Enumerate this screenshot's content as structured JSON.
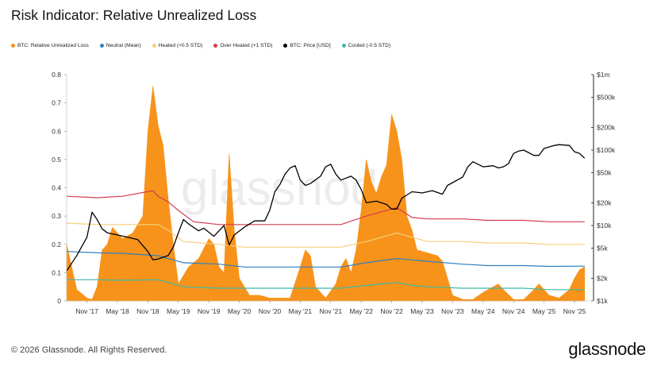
{
  "page": {
    "title": "Risk Indicator: Relative Unrealized Loss",
    "footer": "© 2026 Glassnode. All Rights Reserved.",
    "brand": "glassnode",
    "watermark": "glassnode"
  },
  "legend": [
    {
      "label": "BTC: Relative Unrealized Loss",
      "color": "#f7931a"
    },
    {
      "label": "Neutral (Mean)",
      "color": "#2d7fc1"
    },
    {
      "label": "Heated (+0.5 STD)",
      "color": "#f6d07a"
    },
    {
      "label": "Over Heated (+1 STD)",
      "color": "#d43c50"
    },
    {
      "label": "BTC: Price [USD]",
      "color": "#000000"
    },
    {
      "label": "Cooled (-0.5 STD)",
      "color": "#3fb8a8"
    }
  ],
  "chart_data": {
    "type": "area",
    "title": "Risk Indicator: Relative Unrealized Loss",
    "x_ticks": [
      "Nov '17",
      "May '18",
      "Nov '18",
      "May '19",
      "Nov '19",
      "May '20",
      "Nov '20",
      "May '21",
      "Nov '21",
      "May '22",
      "Nov '22",
      "May '23",
      "Nov '23",
      "May '24",
      "Nov '24",
      "May '25",
      "Nov '25"
    ],
    "y_left": {
      "ticks": [
        "0",
        "0.1",
        "0.2",
        "0.3",
        "0.4",
        "0.5",
        "0.6",
        "0.7",
        "0.8"
      ],
      "ylim": [
        0,
        0.8
      ]
    },
    "y_right": {
      "scale": "log",
      "ticks": [
        "$1k",
        "$2k",
        "$5k",
        "$10k",
        "$20k",
        "$50k",
        "$100k",
        "$200k",
        "$500k",
        "$1m"
      ],
      "ylim": [
        1000,
        1000000
      ]
    },
    "grid": false,
    "legend_position": "top-left",
    "series": [
      {
        "name": "BTC: Relative Unrealized Loss",
        "axis": "left",
        "kind": "area",
        "color": "#f7931a",
        "x": [
          "2017-07",
          "2017-09",
          "2017-11",
          "2017-12",
          "2018-01",
          "2018-02",
          "2018-03",
          "2018-04",
          "2018-06",
          "2018-08",
          "2018-10",
          "2018-11",
          "2018-12",
          "2019-01",
          "2019-02",
          "2019-03",
          "2019-04",
          "2019-05",
          "2019-07",
          "2019-09",
          "2019-11",
          "2019-12",
          "2020-01",
          "2020-02",
          "2020-03",
          "2020-04",
          "2020-05",
          "2020-07",
          "2020-09",
          "2020-11",
          "2021-01",
          "2021-03",
          "2021-05",
          "2021-06",
          "2021-07",
          "2021-08",
          "2021-10",
          "2021-12",
          "2022-01",
          "2022-02",
          "2022-03",
          "2022-04",
          "2022-05",
          "2022-06",
          "2022-07",
          "2022-08",
          "2022-09",
          "2022-10",
          "2022-11",
          "2022-12",
          "2023-01",
          "2023-02",
          "2023-03",
          "2023-04",
          "2023-06",
          "2023-08",
          "2023-09",
          "2023-10",
          "2023-11",
          "2024-01",
          "2024-03",
          "2024-05",
          "2024-07",
          "2024-08",
          "2024-09",
          "2024-11",
          "2025-01",
          "2025-03",
          "2025-04",
          "2025-06",
          "2025-08",
          "2025-10",
          "2025-11",
          "2025-12",
          "2026-01"
        ],
        "values": [
          0.2,
          0.04,
          0.01,
          0.005,
          0.05,
          0.18,
          0.2,
          0.26,
          0.22,
          0.24,
          0.3,
          0.6,
          0.76,
          0.62,
          0.55,
          0.36,
          0.2,
          0.06,
          0.12,
          0.15,
          0.22,
          0.2,
          0.12,
          0.1,
          0.52,
          0.25,
          0.08,
          0.02,
          0.02,
          0.01,
          0.01,
          0.01,
          0.12,
          0.18,
          0.16,
          0.05,
          0.01,
          0.06,
          0.12,
          0.15,
          0.1,
          0.18,
          0.32,
          0.5,
          0.42,
          0.38,
          0.44,
          0.48,
          0.66,
          0.6,
          0.5,
          0.3,
          0.25,
          0.18,
          0.17,
          0.16,
          0.14,
          0.08,
          0.02,
          0.005,
          0.005,
          0.03,
          0.05,
          0.06,
          0.04,
          0.005,
          0.005,
          0.04,
          0.06,
          0.02,
          0.01,
          0.04,
          0.08,
          0.11,
          0.12
        ]
      },
      {
        "name": "Neutral (Mean)",
        "axis": "left",
        "kind": "line",
        "color": "#2d7fc1",
        "x": [
          "2017-07",
          "2018-01",
          "2018-06",
          "2019-01",
          "2019-03",
          "2019-06",
          "2020-01",
          "2020-06",
          "2021-06",
          "2022-01",
          "2022-06",
          "2022-12",
          "2023-06",
          "2024-01",
          "2024-06",
          "2025-01",
          "2025-06",
          "2026-01"
        ],
        "values": [
          0.175,
          0.17,
          0.168,
          0.16,
          0.15,
          0.135,
          0.13,
          0.12,
          0.12,
          0.12,
          0.135,
          0.15,
          0.14,
          0.13,
          0.125,
          0.125,
          0.122,
          0.123
        ]
      },
      {
        "name": "Heated (+0.5 STD)",
        "axis": "left",
        "kind": "line",
        "color": "#f6d07a",
        "x": [
          "2017-07",
          "2018-01",
          "2018-06",
          "2019-01",
          "2019-03",
          "2019-06",
          "2020-01",
          "2020-06",
          "2021-06",
          "2022-01",
          "2022-06",
          "2022-12",
          "2023-03",
          "2023-06",
          "2024-01",
          "2024-06",
          "2025-01",
          "2025-06",
          "2026-01"
        ],
        "values": [
          0.275,
          0.27,
          0.27,
          0.27,
          0.25,
          0.21,
          0.2,
          0.19,
          0.19,
          0.19,
          0.21,
          0.24,
          0.225,
          0.21,
          0.21,
          0.205,
          0.205,
          0.2,
          0.2
        ]
      },
      {
        "name": "Over Heated (+1 STD)",
        "axis": "left",
        "kind": "line",
        "color": "#d43c50",
        "x": [
          "2017-07",
          "2018-01",
          "2018-06",
          "2018-12",
          "2019-01",
          "2019-03",
          "2019-05",
          "2019-08",
          "2020-01",
          "2020-06",
          "2021-06",
          "2022-01",
          "2022-06",
          "2022-12",
          "2023-03",
          "2023-06",
          "2024-01",
          "2024-06",
          "2025-01",
          "2025-06",
          "2026-01"
        ],
        "values": [
          0.37,
          0.365,
          0.37,
          0.39,
          0.37,
          0.35,
          0.32,
          0.28,
          0.27,
          0.27,
          0.27,
          0.27,
          0.3,
          0.33,
          0.295,
          0.29,
          0.29,
          0.285,
          0.285,
          0.28,
          0.28
        ]
      },
      {
        "name": "Cooled (-0.5 STD)",
        "axis": "left",
        "kind": "line",
        "color": "#3fb8a8",
        "x": [
          "2017-07",
          "2018-01",
          "2018-06",
          "2019-01",
          "2019-03",
          "2019-06",
          "2020-01",
          "2020-06",
          "2021-06",
          "2022-01",
          "2022-06",
          "2022-12",
          "2023-03",
          "2023-06",
          "2024-01",
          "2024-06",
          "2025-01",
          "2025-06",
          "2026-01"
        ],
        "values": [
          0.075,
          0.075,
          0.073,
          0.075,
          0.065,
          0.05,
          0.045,
          0.045,
          0.045,
          0.045,
          0.055,
          0.065,
          0.055,
          0.05,
          0.045,
          0.045,
          0.045,
          0.04,
          0.04
        ]
      },
      {
        "name": "BTC: Price [USD]",
        "axis": "right",
        "kind": "line",
        "color": "#000000",
        "x": [
          "2017-07",
          "2017-09",
          "2017-11",
          "2017-12",
          "2018-01",
          "2018-02",
          "2018-03",
          "2018-05",
          "2018-07",
          "2018-09",
          "2018-11",
          "2018-12",
          "2019-01",
          "2019-03",
          "2019-04",
          "2019-05",
          "2019-06",
          "2019-07",
          "2019-09",
          "2019-10",
          "2019-12",
          "2020-01",
          "2020-02",
          "2020-03",
          "2020-04",
          "2020-06",
          "2020-08",
          "2020-10",
          "2020-11",
          "2020-12",
          "2021-01",
          "2021-02",
          "2021-03",
          "2021-04",
          "2021-05",
          "2021-06",
          "2021-07",
          "2021-09",
          "2021-10",
          "2021-11",
          "2021-12",
          "2022-01",
          "2022-03",
          "2022-04",
          "2022-05",
          "2022-06",
          "2022-08",
          "2022-10",
          "2022-11",
          "2022-12",
          "2023-01",
          "2023-03",
          "2023-05",
          "2023-07",
          "2023-09",
          "2023-10",
          "2023-11",
          "2024-01",
          "2024-02",
          "2024-03",
          "2024-05",
          "2024-07",
          "2024-08",
          "2024-09",
          "2024-10",
          "2024-11",
          "2024-12",
          "2025-01",
          "2025-03",
          "2025-04",
          "2025-05",
          "2025-07",
          "2025-08",
          "2025-10",
          "2025-11",
          "2025-12",
          "2026-01"
        ],
        "values": [
          2500,
          4000,
          7000,
          15000,
          12000,
          9000,
          8000,
          7500,
          7000,
          6500,
          4500,
          3500,
          3600,
          4000,
          5200,
          8000,
          12000,
          10500,
          8500,
          9200,
          7200,
          8500,
          10000,
          5500,
          7500,
          9500,
          11500,
          11500,
          16000,
          28000,
          35000,
          48000,
          58000,
          62000,
          40000,
          34000,
          36000,
          45000,
          60000,
          65000,
          48000,
          40000,
          45000,
          40000,
          30000,
          20000,
          21000,
          19000,
          16500,
          16500,
          23000,
          28000,
          27000,
          29000,
          26000,
          34000,
          37000,
          44000,
          60000,
          70000,
          60000,
          62000,
          58000,
          60000,
          66000,
          90000,
          97000,
          100000,
          85000,
          85000,
          105000,
          115000,
          118000,
          115000,
          95000,
          90000,
          78000
        ]
      }
    ]
  }
}
